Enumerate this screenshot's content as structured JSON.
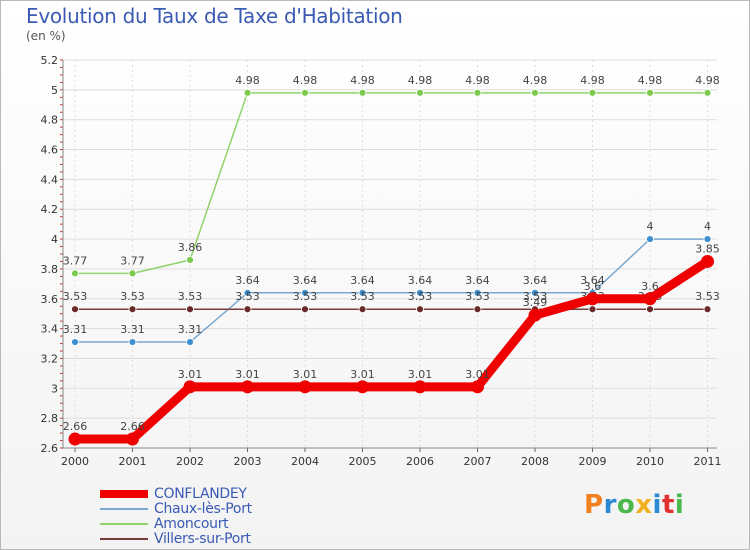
{
  "chart_data": {
    "type": "line",
    "title": "Evolution du Taux de Taxe d'Habitation",
    "ylabel": "(en %)",
    "x": [
      "2000",
      "2001",
      "2002",
      "2003",
      "2004",
      "2005",
      "2006",
      "2007",
      "2008",
      "2009",
      "2010",
      "2011"
    ],
    "yticks": [
      "2.6",
      "2.8",
      "3",
      "3.2",
      "3.4",
      "3.6",
      "3.8",
      "4",
      "4.2",
      "4.4",
      "4.6",
      "4.8",
      "5",
      "5.2"
    ],
    "ylim": [
      2.6,
      5.2
    ],
    "series": [
      {
        "name": "Amoncourt",
        "color": "#8fd36a",
        "marker": "#7ccb4e",
        "values": [
          3.77,
          3.77,
          3.86,
          4.98,
          4.98,
          4.98,
          4.98,
          4.98,
          4.98,
          4.98,
          4.98,
          4.98
        ],
        "labels": [
          "3.77",
          "3.77",
          "3.86",
          "4.98",
          "4.98",
          "4.98",
          "4.98",
          "4.98",
          "4.98",
          "4.98",
          "4.98",
          "4.98"
        ]
      },
      {
        "name": "Chaux-lès-Port",
        "color": "#7aa8d0",
        "marker": "#3d8fd0",
        "values": [
          3.31,
          3.31,
          3.31,
          3.64,
          3.64,
          3.64,
          3.64,
          3.64,
          3.64,
          3.64,
          4,
          4
        ],
        "labels": [
          "3.31",
          "3.31",
          "3.31",
          "3.64",
          "3.64",
          "3.64",
          "3.64",
          "3.64",
          "3.64",
          "3.64",
          "4",
          "4"
        ]
      },
      {
        "name": "Villers-sur-Port",
        "color": "#7a3b3b",
        "marker": "#6a2a2a",
        "values": [
          3.53,
          3.53,
          3.53,
          3.53,
          3.53,
          3.53,
          3.53,
          3.53,
          3.53,
          3.53,
          3.53,
          3.53
        ],
        "labels": [
          "3.53",
          "3.53",
          "3.53",
          "3.53",
          "3.53",
          "3.53",
          "3.53",
          "3.53",
          "3.53",
          "3.53",
          "3.53",
          "3.53"
        ]
      },
      {
        "name": "CONFLANDEY",
        "color": "#ee0000",
        "marker": "#ee0000",
        "values": [
          2.66,
          2.66,
          3.01,
          3.01,
          3.01,
          3.01,
          3.01,
          3.01,
          3.49,
          3.6,
          3.6,
          3.85
        ],
        "labels": [
          "2.66",
          "2.66",
          "3.01",
          "3.01",
          "3.01",
          "3.01",
          "3.01",
          "3.01",
          "3.49",
          "3.6",
          "3.6",
          "3.85"
        ]
      }
    ],
    "legend": [
      "CONFLANDEY",
      "Chaux-lès-Port",
      "Amoncourt",
      "Villers-sur-Port"
    ]
  },
  "logo": {
    "letters": [
      "P",
      "r",
      "o",
      "x",
      "i",
      "t",
      "i"
    ],
    "colors": [
      "#f08020",
      "#2a8ad4",
      "#4ab84a",
      "#f0b020",
      "#2a8ad4",
      "#e03030",
      "#4ab84a"
    ]
  }
}
